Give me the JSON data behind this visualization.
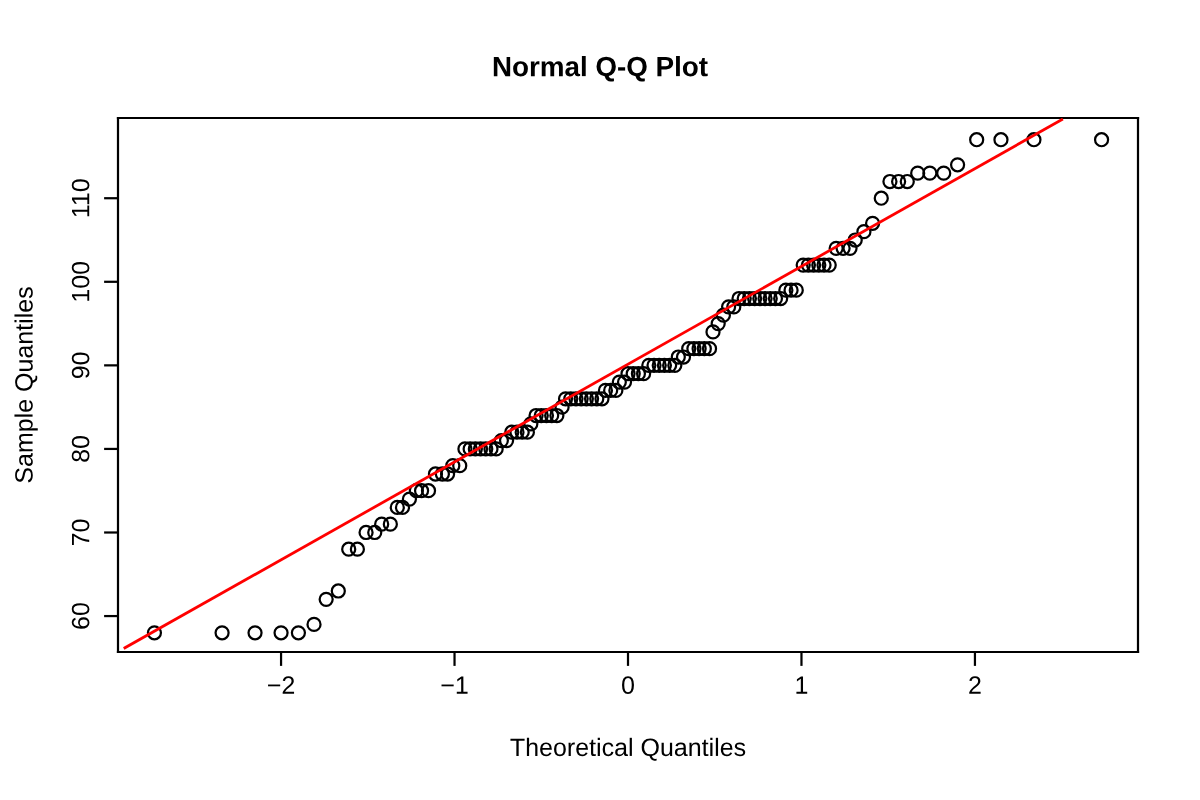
{
  "chart_data": {
    "type": "scatter",
    "title": "Normal Q-Q Plot",
    "xlabel": "Theoretical Quantiles",
    "ylabel": "Sample Quantiles",
    "series": [
      {
        "color": "#000000",
        "marker": "circle",
        "x": [
          -2.73,
          -2.34,
          -2.15,
          -2.0,
          -1.9,
          -1.81,
          -1.74,
          -1.67,
          -1.61,
          -1.56,
          -1.51,
          -1.46,
          -1.42,
          -1.37,
          -1.33,
          -1.3,
          -1.26,
          -1.22,
          -1.19,
          -1.15,
          -1.11,
          -1.07,
          -1.04,
          -1.01,
          -0.97,
          -0.94,
          -0.91,
          -0.88,
          -0.85,
          -0.82,
          -0.79,
          -0.76,
          -0.73,
          -0.7,
          -0.67,
          -0.64,
          -0.61,
          -0.58,
          -0.56,
          -0.53,
          -0.5,
          -0.47,
          -0.44,
          -0.41,
          -0.38,
          -0.36,
          -0.33,
          -0.3,
          -0.27,
          -0.24,
          -0.21,
          -0.18,
          -0.15,
          -0.13,
          -0.1,
          -0.07,
          -0.05,
          -0.02,
          0.0,
          0.03,
          0.06,
          0.09,
          0.12,
          0.15,
          0.18,
          0.21,
          0.24,
          0.27,
          0.29,
          0.32,
          0.35,
          0.38,
          0.41,
          0.44,
          0.47,
          0.49,
          0.52,
          0.55,
          0.58,
          0.61,
          0.64,
          0.67,
          0.7,
          0.73,
          0.76,
          0.79,
          0.82,
          0.85,
          0.88,
          0.91,
          0.94,
          0.97,
          1.01,
          1.04,
          1.07,
          1.1,
          1.13,
          1.16,
          1.2,
          1.24,
          1.28,
          1.31,
          1.36,
          1.41,
          1.46,
          1.51,
          1.56,
          1.61,
          1.67,
          1.74,
          1.82,
          1.9,
          2.01,
          2.15,
          2.34,
          2.73
        ],
        "values": [
          58,
          58,
          58,
          58,
          58,
          59,
          62,
          63,
          68,
          68,
          70,
          70,
          71,
          71,
          73,
          73,
          74,
          75,
          75,
          75,
          77,
          77,
          77,
          78,
          78,
          80,
          80,
          80,
          80,
          80,
          80,
          80,
          81,
          81,
          82,
          82,
          82,
          82,
          83,
          84,
          84,
          84,
          84,
          84,
          85,
          86,
          86,
          86,
          86,
          86,
          86,
          86,
          86,
          87,
          87,
          87,
          88,
          88,
          89,
          89,
          89,
          89,
          90,
          90,
          90,
          90,
          90,
          90,
          91,
          91,
          92,
          92,
          92,
          92,
          92,
          94,
          95,
          96,
          97,
          97,
          98,
          98,
          98,
          98,
          98,
          98,
          98,
          98,
          98,
          99,
          99,
          99,
          102,
          102,
          102,
          102,
          102,
          102,
          104,
          104,
          104,
          105,
          106,
          107,
          110,
          112,
          112,
          112,
          113,
          113,
          113,
          114,
          117,
          117,
          117,
          117
        ]
      },
      {
        "type": "line",
        "color": "#ff0000",
        "marker": "none",
        "x": [
          -2.9,
          2.5
        ],
        "values": [
          56.2,
          119.4
        ]
      }
    ],
    "xlim": [
      -2.94,
      2.94
    ],
    "ylim": [
      55.7,
      119.6
    ],
    "xticks": [
      -2,
      -1,
      0,
      1,
      2
    ],
    "yticks": [
      60,
      70,
      80,
      90,
      100,
      110
    ],
    "grid": false,
    "legend": false
  }
}
